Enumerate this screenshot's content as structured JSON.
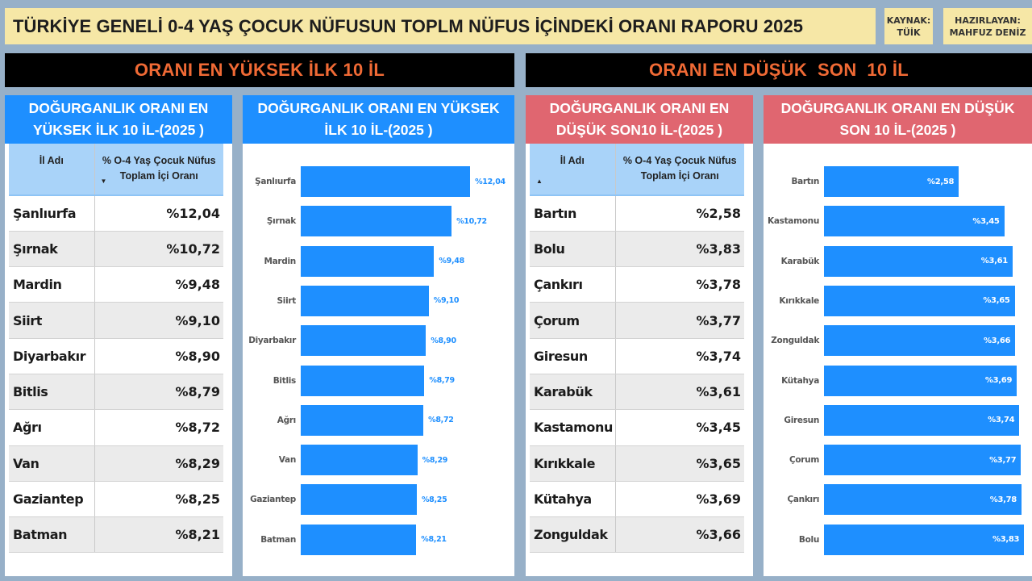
{
  "header": {
    "title": "TÜRKİYE GENELİ 0-4 YAŞ ÇOCUK NÜFUSUN TOPLM NÜFUS İÇİNDEKİ ORANI RAPORU 2025",
    "source_label": "KAYNAK:",
    "source_value": "TÜİK",
    "author_label": "HAZIRLAYAN:",
    "author_value": "MAHFUZ DENİZ"
  },
  "sections": {
    "left_title": "ORANI EN YÜKSEK İLK 10 İL",
    "right_title": "ORANI EN DÜŞÜK  SON  10 İL"
  },
  "colors": {
    "background": "#97B0C8",
    "title_bg": "#F6E7A6",
    "section_text": "#F06A35",
    "blue": "#1E8FFF",
    "red_header": "#E06670",
    "table_header": "#A9D3F9"
  },
  "top_table": {
    "title": "DOĞURGANLIK ORANI EN YÜKSEK İLK 10 İL-(2025 )",
    "col1": "İl Adı",
    "col2": "% O-4 Yaş Çocuk Nüfus Toplam İçi Oranı",
    "sort_indicator": "▼",
    "rows": [
      {
        "name": "Şanlıurfa",
        "value": "%12,04"
      },
      {
        "name": "Şırnak",
        "value": "%10,72"
      },
      {
        "name": "Mardin",
        "value": "%9,48"
      },
      {
        "name": "Siirt",
        "value": "%9,10"
      },
      {
        "name": "Diyarbakır",
        "value": "%8,90"
      },
      {
        "name": "Bitlis",
        "value": "%8,79"
      },
      {
        "name": "Ağrı",
        "value": "%8,72"
      },
      {
        "name": "Van",
        "value": "%8,29"
      },
      {
        "name": "Gaziantep",
        "value": "%8,25"
      },
      {
        "name": "Batman",
        "value": "%8,21"
      }
    ]
  },
  "bottom_table": {
    "title": "DOĞURGANLIK ORANI EN DÜŞÜK SON10 İL-(2025 )",
    "col1": "İl Adı",
    "col2": "% O-4 Yaş Çocuk Nüfus Toplam İçi Oranı",
    "sort_indicator": "▲",
    "rows": [
      {
        "name": "Bartın",
        "value": "%2,58"
      },
      {
        "name": "Bolu",
        "value": "%3,83"
      },
      {
        "name": "Çankırı",
        "value": "%3,78"
      },
      {
        "name": "Çorum",
        "value": "%3,77"
      },
      {
        "name": "Giresun",
        "value": "%3,74"
      },
      {
        "name": "Karabük",
        "value": "%3,61"
      },
      {
        "name": "Kastamonu",
        "value": "%3,45"
      },
      {
        "name": "Kırıkkale",
        "value": "%3,65"
      },
      {
        "name": "Kütahya",
        "value": "%3,69"
      },
      {
        "name": "Zonguldak",
        "value": "%3,66"
      }
    ]
  },
  "chart_data": [
    {
      "type": "bar",
      "orientation": "horizontal",
      "title": "DOĞURGANLIK ORANI EN YÜKSEK İLK 10 İL-(2025 )",
      "categories": [
        "Şanlıurfa",
        "Şırnak",
        "Mardin",
        "Siirt",
        "Diyarbakır",
        "Bitlis",
        "Ağrı",
        "Van",
        "Gaziantep",
        "Batman"
      ],
      "values": [
        12.04,
        10.72,
        9.48,
        9.1,
        8.9,
        8.79,
        8.72,
        8.29,
        8.25,
        8.21
      ],
      "labels": [
        "%12,04",
        "%10,72",
        "%9,48",
        "%9,10",
        "%8,90",
        "%8,79",
        "%8,72",
        "%8,29",
        "%8,25",
        "%8,21"
      ],
      "label_position": "outside",
      "xlabel": "",
      "ylabel": "",
      "grid": false,
      "legend": false,
      "color": "#1E8FFF"
    },
    {
      "type": "bar",
      "orientation": "horizontal",
      "title": "DOĞURGANLIK ORANI EN DÜŞÜK SON 10 İL-(2025 )",
      "categories": [
        "Bartın",
        "Kastamonu",
        "Karabük",
        "Kırıkkale",
        "Zonguldak",
        "Kütahya",
        "Giresun",
        "Çorum",
        "Çankırı",
        "Bolu"
      ],
      "values": [
        2.58,
        3.45,
        3.61,
        3.65,
        3.66,
        3.69,
        3.74,
        3.77,
        3.78,
        3.83
      ],
      "labels": [
        "%2,58",
        "%3,45",
        "%3,61",
        "%3,65",
        "%3,66",
        "%3,69",
        "%3,74",
        "%3,77",
        "%3,78",
        "%3,83"
      ],
      "label_position": "inside_end",
      "xlabel": "",
      "ylabel": "",
      "grid": false,
      "legend": false,
      "color": "#1E8FFF"
    }
  ]
}
